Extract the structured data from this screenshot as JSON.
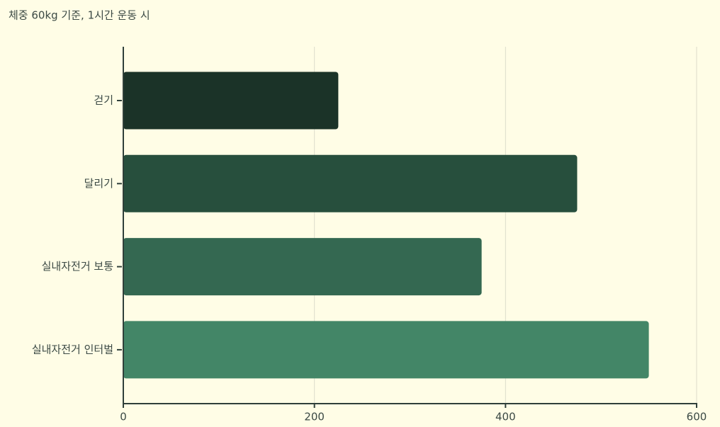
{
  "chart_data": {
    "type": "bar",
    "orientation": "horizontal",
    "title": "체중 60kg 기준, 1시간 운동 시",
    "categories": [
      "걷기",
      "달리기",
      "실내자전거 보통",
      "실내자전거 인터벌"
    ],
    "values": [
      225,
      475,
      375,
      550
    ],
    "colors": [
      "#1b3328",
      "#274f3d",
      "#346851",
      "#438667"
    ],
    "xlim": [
      0,
      600
    ],
    "xticks": [
      0,
      200,
      400,
      600
    ],
    "grid": true
  }
}
